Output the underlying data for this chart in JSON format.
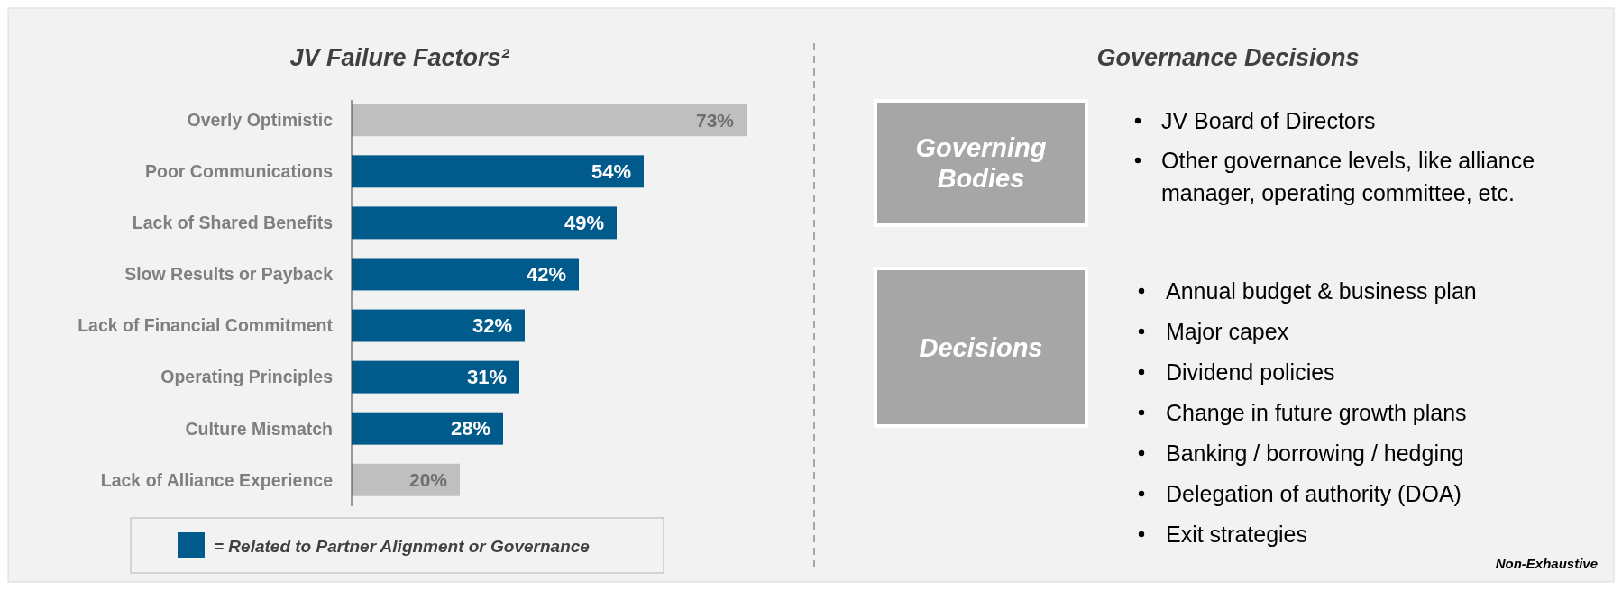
{
  "chart_data": [
    {
      "type": "bar",
      "orientation": "horizontal",
      "title": "JV Failure Factors²",
      "categories": [
        "Overly Optimistic",
        "Poor Communications",
        "Lack of Shared Benefits",
        "Slow Results or Payback",
        "Lack of Financial Commitment",
        "Operating Principles",
        "Culture Mismatch",
        "Lack of Alliance Experience"
      ],
      "legend": "bottom",
      "series": [
        {
          "name": "= Related to Partner Alignment or Governance",
          "color": "#005a8c",
          "values": [
            null,
            54,
            49,
            42,
            32,
            31,
            28,
            null
          ],
          "value_labels": [
            null,
            "54%",
            "49%",
            "42%",
            "32%",
            "31%",
            "28%",
            null
          ]
        },
        {
          "color": "#bfbfbf",
          "values": [
            73,
            null,
            null,
            null,
            null,
            null,
            null,
            20
          ],
          "value_labels": [
            "73%",
            null,
            null,
            null,
            null,
            null,
            null,
            "20%"
          ]
        }
      ]
    },
    {
      "type": "other",
      "title": "Governance Decisions",
      "categories": [
        "Governing Bodies"
      ],
      "annotations": [
        "JV Board of Directors",
        "Other governance levels, like alliance manager, operating committee, etc."
      ]
    },
    {
      "type": "other",
      "categories": [
        "Decisions"
      ],
      "annotations": [
        "Annual budget & business plan",
        "Major capex",
        "Dividend policies",
        "Change in future growth plans",
        "Banking / borrowing / hedging",
        "Delegation of authority (DOA)",
        "Exit strategies"
      ]
    },
    {
      "type": "other",
      "annotations": [
        "Non-Exhaustive"
      ]
    }
  ]
}
